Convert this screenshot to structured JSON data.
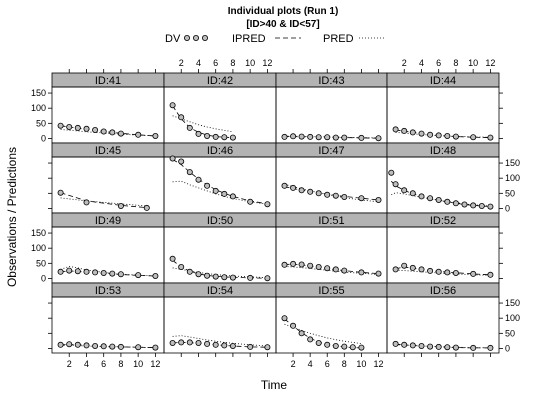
{
  "chart_data": {
    "type": "line",
    "title": "Individual plots (Run 1)",
    "subtitle": "[ID>40 & ID<57]",
    "xlabel": "Time",
    "ylabel": "Observations / Predictions",
    "xlim": [
      0,
      13
    ],
    "ylim": [
      -15,
      170
    ],
    "x_ticks": [
      2,
      4,
      6,
      8,
      10,
      12
    ],
    "y_ticks": [
      0,
      50,
      100,
      150
    ],
    "layout": {
      "columns": 4,
      "rows": 4
    },
    "legend": [
      {
        "name": "DV",
        "style": "points"
      },
      {
        "name": "IPRED",
        "style": "dashed"
      },
      {
        "name": "PRED",
        "style": "dotted"
      }
    ],
    "panels": [
      {
        "id": "ID:41",
        "x": [
          1,
          2,
          3,
          4,
          5,
          6,
          7,
          8,
          10,
          12
        ],
        "dv": [
          42,
          38,
          35,
          32,
          28,
          23,
          20,
          16,
          12,
          8
        ],
        "ipred": [
          42,
          38,
          34,
          30,
          27,
          23,
          20,
          17,
          12,
          8
        ],
        "pred": [
          30,
          27,
          25,
          22,
          20,
          18,
          16,
          14,
          11,
          8
        ]
      },
      {
        "id": "ID:42",
        "x": [
          1,
          2,
          3,
          4,
          5,
          6,
          7,
          8
        ],
        "dv": [
          110,
          70,
          35,
          15,
          8,
          5,
          4,
          3
        ],
        "ipred": [
          108,
          65,
          36,
          20,
          11,
          6,
          4,
          3
        ],
        "pred": [
          75,
          65,
          55,
          45,
          38,
          32,
          27,
          22
        ]
      },
      {
        "id": "ID:43",
        "x": [
          1,
          2,
          3,
          4,
          5,
          6,
          7,
          8,
          10,
          12
        ],
        "dv": [
          5,
          7,
          6,
          5,
          4,
          4,
          3,
          3,
          2,
          1
        ],
        "ipred": [
          6,
          6,
          5,
          5,
          4,
          4,
          3,
          3,
          2,
          1
        ],
        "pred": [
          8,
          7,
          7,
          6,
          5,
          5,
          4,
          4,
          3,
          2
        ]
      },
      {
        "id": "ID:44",
        "x": [
          1,
          2,
          3,
          4,
          5,
          6,
          7,
          8,
          10,
          12
        ],
        "dv": [
          30,
          25,
          20,
          16,
          12,
          10,
          8,
          6,
          4,
          3
        ],
        "ipred": [
          28,
          24,
          20,
          16,
          13,
          10,
          8,
          6,
          4,
          3
        ],
        "pred": [
          20,
          18,
          15,
          13,
          11,
          9,
          8,
          7,
          5,
          4
        ]
      },
      {
        "id": "ID:45",
        "x": [
          1,
          4,
          8,
          11
        ],
        "dv": [
          52,
          20,
          8,
          2
        ],
        "ipred": [
          52,
          25,
          10,
          3
        ],
        "pred": [
          35,
          25,
          15,
          8
        ]
      },
      {
        "id": "ID:46",
        "x": [
          1,
          2,
          3,
          4,
          5,
          6,
          7,
          8,
          10,
          12
        ],
        "dv": [
          165,
          155,
          120,
          95,
          75,
          58,
          48,
          40,
          22,
          14
        ],
        "ipred": [
          162,
          145,
          120,
          97,
          78,
          62,
          50,
          40,
          25,
          15
        ],
        "pred": [
          88,
          90,
          78,
          68,
          58,
          48,
          40,
          33,
          22,
          14
        ]
      },
      {
        "id": "ID:47",
        "x": [
          1,
          2,
          3,
          4,
          5,
          6,
          7,
          8,
          10,
          12
        ],
        "dv": [
          75,
          68,
          60,
          55,
          50,
          45,
          42,
          38,
          34,
          28
        ],
        "ipred": [
          72,
          66,
          61,
          56,
          52,
          47,
          43,
          40,
          34,
          28
        ],
        "pred": [
          80,
          72,
          65,
          58,
          52,
          46,
          41,
          36,
          28,
          22
        ]
      },
      {
        "id": "ID:48",
        "x": [
          0.5,
          1,
          2,
          3,
          4,
          5,
          6,
          7,
          8,
          9,
          10,
          11,
          12
        ],
        "dv": [
          118,
          80,
          60,
          50,
          40,
          34,
          28,
          22,
          17,
          13,
          10,
          8,
          6
        ],
        "ipred": [
          90,
          75,
          60,
          48,
          40,
          33,
          27,
          22,
          17,
          13,
          10,
          8,
          6
        ],
        "pred": [
          45,
          52,
          48,
          42,
          37,
          32,
          27,
          23,
          19,
          15,
          12,
          10,
          8
        ]
      },
      {
        "id": "ID:49",
        "x": [
          1,
          2,
          3,
          4,
          5,
          6,
          7,
          8,
          10,
          12
        ],
        "dv": [
          22,
          26,
          24,
          22,
          20,
          18,
          16,
          14,
          11,
          8
        ],
        "ipred": [
          22,
          25,
          23,
          21,
          19,
          17,
          15,
          13,
          10,
          8
        ],
        "pred": [
          30,
          40,
          35,
          28,
          24,
          20,
          17,
          14,
          11,
          8
        ]
      },
      {
        "id": "ID:50",
        "x": [
          1,
          2,
          3,
          4,
          5,
          6,
          7,
          8,
          10,
          12
        ],
        "dv": [
          65,
          38,
          22,
          14,
          9,
          6,
          4,
          3,
          2,
          1
        ],
        "ipred": [
          60,
          38,
          24,
          15,
          10,
          7,
          5,
          4,
          2,
          1
        ],
        "pred": [
          35,
          30,
          25,
          20,
          16,
          13,
          10,
          8,
          5,
          3
        ]
      },
      {
        "id": "ID:51",
        "x": [
          1,
          2,
          3,
          4,
          5,
          6,
          7,
          8,
          10,
          12
        ],
        "dv": [
          45,
          48,
          46,
          42,
          38,
          34,
          30,
          26,
          20,
          16
        ],
        "ipred": [
          46,
          47,
          45,
          41,
          37,
          33,
          29,
          26,
          20,
          16
        ],
        "pred": [
          40,
          38,
          36,
          33,
          30,
          27,
          24,
          21,
          17,
          13
        ]
      },
      {
        "id": "ID:52",
        "x": [
          1,
          2,
          3,
          4,
          5,
          6,
          7,
          8,
          10,
          12
        ],
        "dv": [
          30,
          42,
          35,
          30,
          25,
          22,
          20,
          18,
          15,
          12
        ],
        "ipred": [
          32,
          38,
          34,
          30,
          26,
          23,
          21,
          19,
          15,
          12
        ],
        "pred": [
          28,
          26,
          24,
          22,
          20,
          18,
          16,
          15,
          12,
          10
        ]
      },
      {
        "id": "ID:53",
        "x": [
          1,
          2,
          3,
          4,
          5,
          6,
          7,
          8,
          10,
          12
        ],
        "dv": [
          12,
          14,
          12,
          10,
          8,
          7,
          6,
          5,
          4,
          3
        ],
        "ipred": [
          12,
          13,
          12,
          10,
          8,
          7,
          6,
          5,
          4,
          3
        ],
        "pred": [
          10,
          10,
          9,
          8,
          7,
          6,
          5,
          5,
          4,
          3
        ]
      },
      {
        "id": "ID:54",
        "x": [
          1,
          2,
          3,
          4,
          5,
          6,
          7,
          8,
          10,
          12
        ],
        "dv": [
          18,
          20,
          20,
          18,
          15,
          12,
          10,
          8,
          5,
          4
        ],
        "ipred": [
          18,
          20,
          19,
          17,
          15,
          12,
          10,
          8,
          5,
          4
        ],
        "pred": [
          40,
          42,
          38,
          33,
          28,
          24,
          20,
          17,
          12,
          8
        ]
      },
      {
        "id": "ID:55",
        "x": [
          1,
          2,
          3,
          4,
          5,
          6,
          7,
          8,
          9,
          10
        ],
        "dv": [
          100,
          75,
          50,
          30,
          18,
          12,
          8,
          6,
          4,
          3
        ],
        "ipred": [
          98,
          74,
          52,
          34,
          21,
          13,
          8,
          5,
          3,
          2
        ],
        "pred": [
          80,
          70,
          60,
          50,
          42,
          35,
          29,
          24,
          20,
          16
        ]
      },
      {
        "id": "ID:56",
        "x": [
          1,
          2,
          3,
          4,
          5,
          6,
          7,
          8,
          10,
          12
        ],
        "dv": [
          15,
          12,
          10,
          8,
          6,
          5,
          4,
          3,
          2,
          2
        ],
        "ipred": [
          14,
          12,
          10,
          8,
          6,
          5,
          4,
          3,
          2,
          2
        ],
        "pred": [
          12,
          11,
          9,
          8,
          7,
          6,
          5,
          4,
          3,
          2
        ]
      }
    ]
  }
}
